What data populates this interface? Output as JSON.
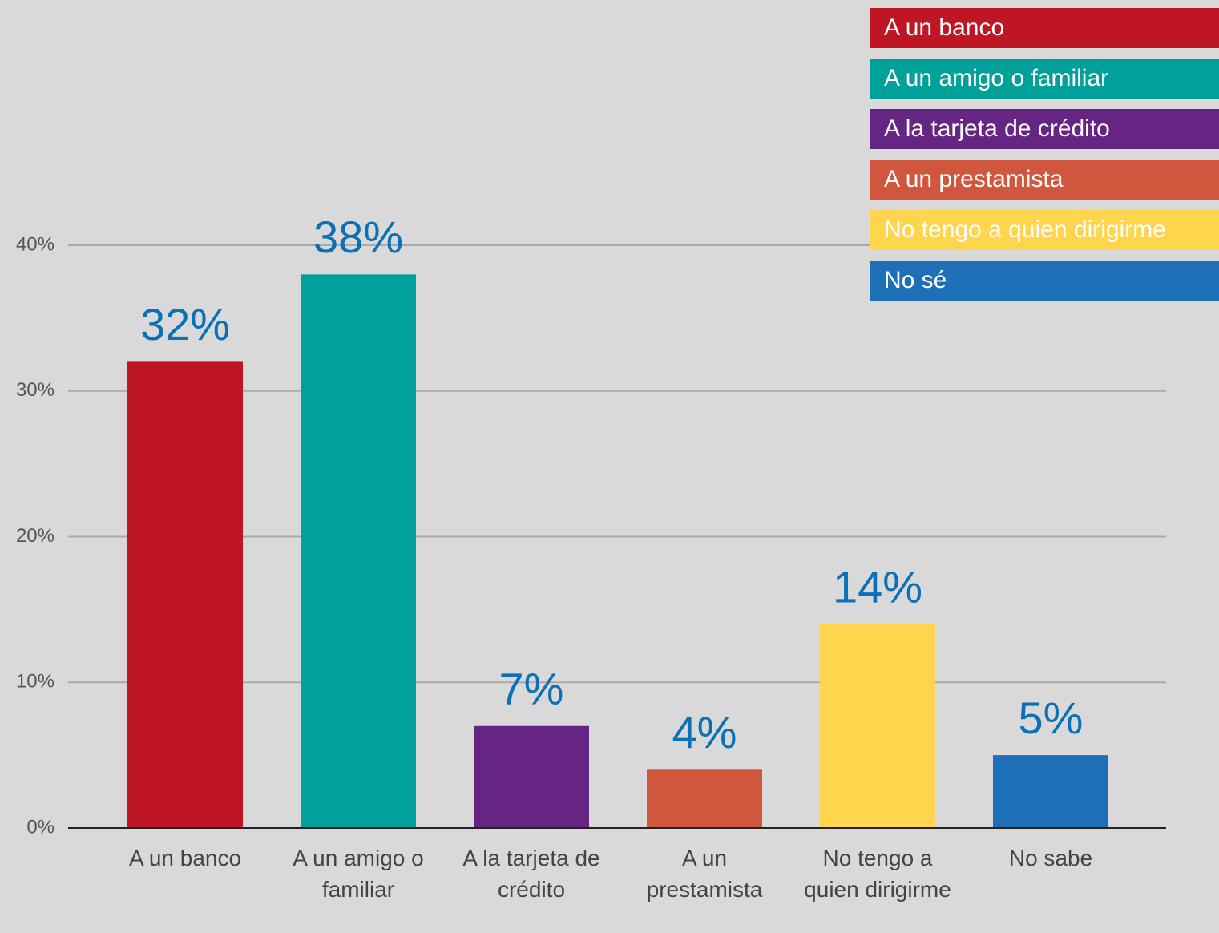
{
  "chart_data": {
    "type": "bar",
    "categories": [
      "A un banco",
      "A un amigo o familiar",
      "A la tarjeta de crédito",
      "A un prestamista",
      "No tengo a quien dirigirme",
      "No sabe"
    ],
    "values": [
      32,
      38,
      7,
      4,
      14,
      5
    ],
    "value_labels": [
      "32%",
      "38%",
      "7%",
      "4%",
      "14%",
      "5%"
    ],
    "colors": [
      "#be1622",
      "#00a19a",
      "#662483",
      "#d0573d",
      "#fed54c",
      "#1d70b7"
    ],
    "legend": [
      "A un banco",
      "A un amigo o familiar",
      "A la tarjeta de crédito",
      "A un prestamista",
      "No tengo a quien dirigirme",
      "No sé"
    ],
    "ylim": [
      0,
      40
    ],
    "yticks": [
      {
        "value": 0,
        "label": "0%"
      },
      {
        "value": 10,
        "label": "10%"
      },
      {
        "value": 20,
        "label": "20%"
      },
      {
        "value": 30,
        "label": "30%"
      },
      {
        "value": 40,
        "label": "40%"
      }
    ],
    "grid": true
  }
}
